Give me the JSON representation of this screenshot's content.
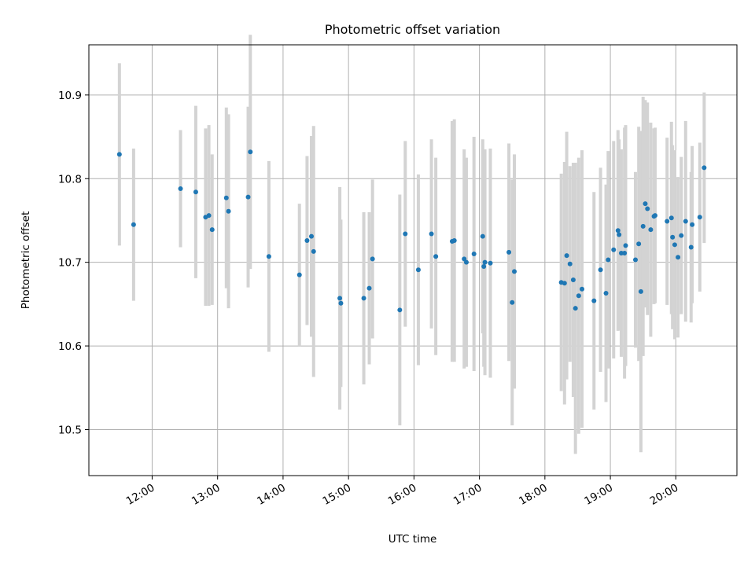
{
  "chart_data": {
    "type": "scatter",
    "title": "Photometric offset variation",
    "xlabel": "UTC time",
    "ylabel": "Photometric offset",
    "xlim": [
      "11:02",
      "20:56"
    ],
    "ylim": [
      10.445,
      10.96
    ],
    "grid": true,
    "x_ticks": [
      "12:00",
      "13:00",
      "14:00",
      "15:00",
      "16:00",
      "17:00",
      "18:00",
      "19:00",
      "20:00"
    ],
    "y_ticks": [
      "10.5",
      "10.6",
      "10.7",
      "10.8",
      "10.9"
    ],
    "colors": {
      "point": "#1f77b4",
      "errorbar": "#d3d3d3",
      "grid": "#b0b0b0"
    },
    "series": [
      {
        "x": [
          "11:30",
          "11:43",
          "12:26",
          "12:40",
          "12:49",
          "12:52",
          "12:55",
          "13:08",
          "13:10",
          "13:28",
          "13:30",
          "13:47",
          "14:15",
          "14:22",
          "14:26",
          "14:28",
          "14:52",
          "14:53",
          "15:14",
          "15:19",
          "15:22",
          "15:47",
          "15:52",
          "16:04",
          "16:16",
          "16:20",
          "16:35",
          "16:37",
          "16:46",
          "16:48",
          "16:55",
          "17:03",
          "17:04",
          "17:05",
          "17:10",
          "17:27",
          "17:30",
          "17:32",
          "18:15",
          "18:18",
          "18:20",
          "18:23",
          "18:26",
          "18:28",
          "18:31",
          "18:34",
          "18:45",
          "18:51",
          "18:56",
          "18:58",
          "19:03",
          "19:07",
          "19:08",
          "19:10",
          "19:13",
          "19:14",
          "19:23",
          "19:26",
          "19:28",
          "19:30",
          "19:32",
          "19:34",
          "19:37",
          "19:40",
          "19:41",
          "19:52",
          "19:56",
          "19:57",
          "19:59",
          "20:02",
          "20:05",
          "20:09",
          "20:14",
          "20:15",
          "20:22"
        ],
        "y": [
          10.829,
          10.745,
          10.788,
          10.784,
          10.754,
          10.756,
          10.739,
          10.777,
          10.761,
          10.778,
          10.832,
          10.707,
          10.685,
          10.726,
          10.731,
          10.713,
          10.657,
          10.651,
          10.657,
          10.669,
          10.704,
          10.643,
          10.734,
          10.691,
          10.734,
          10.707,
          10.725,
          10.726,
          10.704,
          10.7,
          10.71,
          10.731,
          10.695,
          10.7,
          10.699,
          10.712,
          10.652,
          10.689,
          10.676,
          10.675,
          10.708,
          10.698,
          10.679,
          10.645,
          10.66,
          10.668,
          10.654,
          10.691,
          10.663,
          10.703,
          10.715,
          10.738,
          10.733,
          10.711,
          10.711,
          10.72,
          10.703,
          10.722,
          10.665,
          10.743,
          10.77,
          10.764,
          10.739,
          10.755,
          10.756,
          10.749,
          10.753,
          10.73,
          10.721,
          10.706,
          10.732,
          10.749,
          10.718,
          10.745,
          10.754
        ],
        "yerr": [
          0.109,
          0.091,
          0.07,
          0.103,
          0.106,
          0.108,
          0.09,
          0.108,
          0.116,
          0.108,
          0.14,
          0.114,
          0.085,
          0.101,
          0.12,
          0.15,
          0.133,
          0.1,
          0.103,
          0.091,
          0.095,
          0.138,
          0.111,
          0.114,
          0.113,
          0.118,
          0.144,
          0.145,
          0.131,
          0.125,
          0.14,
          0.116,
          0.12,
          0.135,
          0.137,
          0.13,
          0.147,
          0.14,
          0.13,
          0.145,
          0.148,
          0.117,
          0.14,
          0.174,
          0.165,
          0.166,
          0.13,
          0.122,
          0.13,
          0.13,
          0.13,
          0.12,
          0.114,
          0.124,
          0.15,
          0.144,
          0.105,
          0.14,
          0.192,
          0.155,
          0.124,
          0.127,
          0.128,
          0.105,
          0.105,
          0.1,
          0.115,
          0.11,
          0.113,
          0.096,
          0.094,
          0.12,
          0.09,
          0.094,
          0.089
        ]
      },
      {
        "x": [
          "20:26"
        ],
        "y": [
          10.813
        ],
        "yerr": [
          0.09
        ]
      }
    ]
  }
}
